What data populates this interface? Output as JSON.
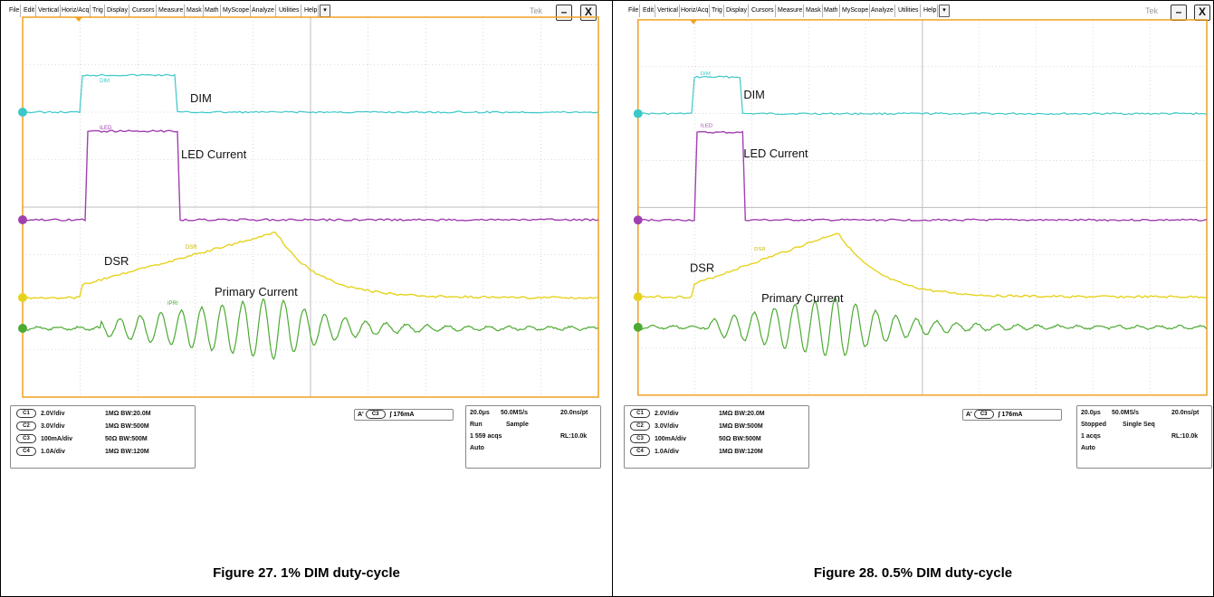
{
  "panels": [
    {
      "menu": [
        "File",
        "Edit",
        "Vertical",
        "Horiz/Acq",
        "Trig",
        "Display",
        "Cursors",
        "Measure",
        "Mask",
        "Math",
        "MyScope",
        "Analyze",
        "Utilities",
        "Help"
      ],
      "menu_dropdown": "▾",
      "brand": "Tek",
      "minimize": "–",
      "close": "X",
      "labels": {
        "dim": "DIM",
        "led": "LED Current",
        "dsr": "DSR",
        "primary": "Primary Current"
      },
      "tags": {
        "dim": "DIM",
        "led": "ILED",
        "dsr": "DSR",
        "primary": "IPRI"
      },
      "channels": [
        {
          "id": "C1",
          "scale": "2.0V/div",
          "impedance": "1MΩ",
          "bw": "BW:20.0M"
        },
        {
          "id": "C2",
          "scale": "3.0V/div",
          "impedance": "1MΩ",
          "bw": "BW:500M"
        },
        {
          "id": "C3",
          "scale": "100mA/div",
          "impedance": "50Ω",
          "bw": "BW:500M"
        },
        {
          "id": "C4",
          "scale": "1.0A/div",
          "impedance": "1MΩ",
          "bw": "BW:120M"
        }
      ],
      "trigger": {
        "mode": "A'",
        "channel": "C3",
        "level": "176mA"
      },
      "acq": {
        "timebase": "20.0μs",
        "rate": "50.0MS/s",
        "res": "20.0ns/pt",
        "state": "Run",
        "mode": "Sample",
        "count": "1 559 acqs",
        "rl": "RL:10.0k",
        "trig_mode": "Auto"
      },
      "caption": "Figure 27. 1% DIM duty-cycle",
      "colors": {
        "dim": "#3cc8c8",
        "led": "#a040b0",
        "dsr": "#e6d21e",
        "primary": "#4caa32",
        "grid": "#bcbcbc",
        "frame": "#f0a020"
      }
    },
    {
      "menu": [
        "File",
        "Edit",
        "Vertical",
        "Horiz/Acq",
        "Trig",
        "Display",
        "Cursors",
        "Measure",
        "Mask",
        "Math",
        "MyScope",
        "Analyze",
        "Utilities",
        "Help"
      ],
      "menu_dropdown": "▾",
      "brand": "Tek",
      "minimize": "–",
      "close": "X",
      "labels": {
        "dim": "DIM",
        "led": "LED Current",
        "dsr": "DSR",
        "primary": "Primary Current"
      },
      "tags": {
        "dim": "DIM",
        "led": "ILED",
        "dsr": "DSR",
        "primary": ""
      },
      "channels": [
        {
          "id": "C1",
          "scale": "2.0V/div",
          "impedance": "1MΩ",
          "bw": "BW:20.0M"
        },
        {
          "id": "C2",
          "scale": "3.0V/div",
          "impedance": "1MΩ",
          "bw": "BW:500M"
        },
        {
          "id": "C3",
          "scale": "100mA/div",
          "impedance": "50Ω",
          "bw": "BW:500M"
        },
        {
          "id": "C4",
          "scale": "1.0A/div",
          "impedance": "1MΩ",
          "bw": "BW:120M"
        }
      ],
      "trigger": {
        "mode": "A'",
        "channel": "C3",
        "level": "176mA"
      },
      "acq": {
        "timebase": "20.0μs",
        "rate": "50.0MS/s",
        "res": "20.0ns/pt",
        "state": "Stopped",
        "mode": "Single Seq",
        "count": "1 acqs",
        "rl": "RL:10.0k",
        "trig_mode": "Auto"
      },
      "caption": "Figure 28. 0.5% DIM duty-cycle",
      "colors": {
        "dim": "#3cc8c8",
        "led": "#a040b0",
        "dsr": "#e6d21e",
        "primary": "#4caa32",
        "grid": "#bcbcbc",
        "frame": "#f0a020"
      }
    }
  ]
}
